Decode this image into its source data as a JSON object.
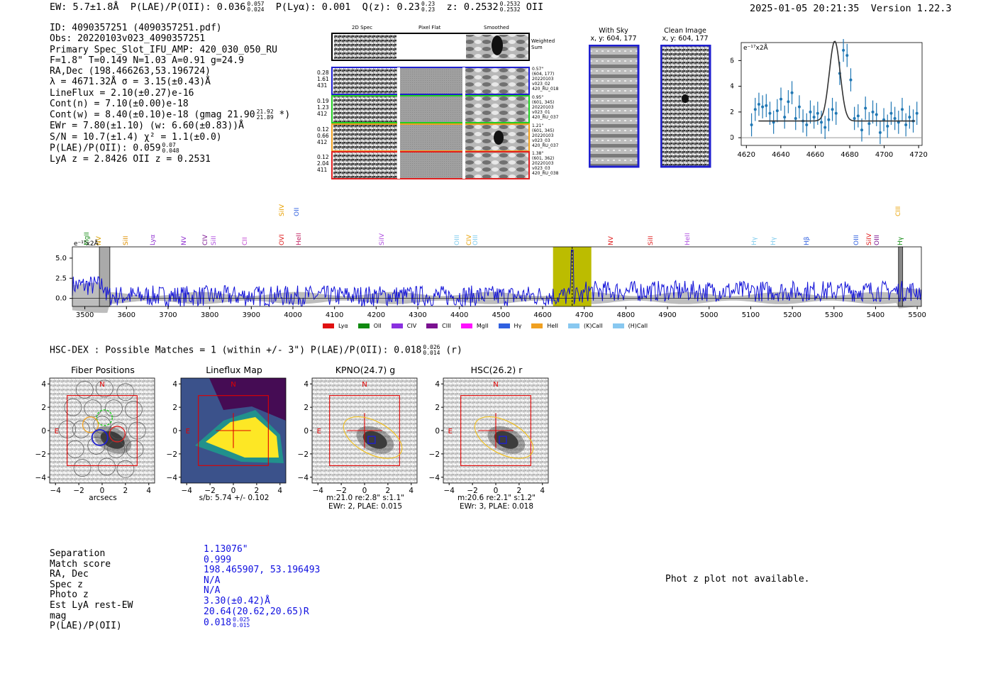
{
  "header": {
    "ew": "EW: 5.7±1.8Å",
    "plae_label": "P(LAE)/P(OII): 0.036",
    "plae_hi": "0.057",
    "plae_lo": "0.024",
    "plya": "P(Lyα): 0.001",
    "q_label": "Q(z): 0.23",
    "q_hi": "0.23",
    "q_lo": "0.23",
    "z_label": "z: 0.2532",
    "z_hi": "0.2532",
    "z_lo": "0.2532",
    "z_line": "OII",
    "timestamp": "2025-01-05 20:21:35",
    "version": "Version 1.22.3"
  },
  "info": {
    "id": "ID: 4090357251 (4090357251.pdf)",
    "obs": "Obs: 20220103v023_4090357251",
    "primary": "Primary Spec_Slot_IFU_AMP: 420_030_050_RU",
    "fiber": "F=1.8\"  T=0.149  N=1.03  A=0.91  g=24.9",
    "radec": "RA,Dec (198.466263,53.196724)",
    "lambda": "λ = 4671.32Å  σ = 3.15(±0.43)Å",
    "lineflux": "LineFlux = 2.10(±0.27)e-16",
    "contn": "Cont(n) = 7.10(±0.00)e-18",
    "contw": "Cont(w) = 8.40(±0.10)e-18 (gmag 21.90",
    "contw_hi": "21.92",
    "contw_lo": "21.89",
    "contw_end": "*)",
    "ewr": "EWr = 7.80(±1.10) (w: 6.60(±0.83))Å",
    "sn": "S/N = 10.7(±1.4)  χ² = 1.1(±0.0)",
    "plae": "P(LAE)/P(OII): 0.059",
    "plae_hi": "0.07",
    "plae_lo": "0.048",
    "lya": "LyA z = 2.8426  OII z = 0.2531"
  },
  "cutouts": {
    "col_2d": "2D Spec",
    "col_flat": "Pixel Flat",
    "col_smooth": "Smoothed",
    "weighted": "Weighted Sum",
    "rows": [
      {
        "v1": "0.28",
        "v2": "1.61",
        "v3": "431",
        "meta1": "0.57\"",
        "meta2": "(604, 177)",
        "meta3": "20220103",
        "meta4": "v023_02",
        "meta5": "420_RU_018",
        "color": "#1f1fd0"
      },
      {
        "v1": "0.19",
        "v2": "1.23",
        "v3": "412",
        "meta1": "0.95\"",
        "meta2": "(601, 345)",
        "meta3": "20220103",
        "meta4": "v023_01",
        "meta5": "420_RU_037",
        "color": "#22cc22"
      },
      {
        "v1": "0.12",
        "v2": "0.66",
        "v3": "412",
        "meta1": "1.21\"",
        "meta2": "(601, 345)",
        "meta3": "20220103",
        "meta4": "v023_03",
        "meta5": "420_RU_037",
        "color": "#f0a020"
      },
      {
        "v1": "0.12",
        "v2": "2.04",
        "v3": "411",
        "meta1": "1.38\"",
        "meta2": "(601, 362)",
        "meta3": "20220103",
        "meta4": "v023_03",
        "meta5": "420_RU_038",
        "color": "#e02020"
      }
    ]
  },
  "sky": {
    "with_sky": "With Sky",
    "with_sky_xy": "x, y: 604, 177",
    "clean": "Clean Image",
    "clean_xy": "x, y: 604, 177"
  },
  "linefit": {
    "unit": "e⁻¹⁷x2Å",
    "yticks": [
      "0",
      "2",
      "4",
      "6"
    ],
    "xticks": [
      "4620",
      "4640",
      "4660",
      "4680",
      "4700",
      "4720"
    ],
    "fit_center": 4671.3,
    "fit_amp": 6.2,
    "fit_sigma": 3.15,
    "fit_cont": 1.3,
    "points": [
      1.0,
      2.2,
      2.6,
      2.4,
      2.5,
      1.9,
      1.2,
      2.1,
      3.0,
      1.6,
      2.8,
      3.5,
      1.5,
      2.4,
      1.3,
      1.0,
      2.0,
      1.6,
      1.9,
      1.2,
      0.8,
      1.4,
      2.2,
      1.9,
      5.0,
      6.8,
      6.4,
      4.5,
      1.5,
      1.7,
      0.6,
      2.3,
      1.1,
      2.0,
      1.8,
      0.4,
      1.4,
      0.9,
      1.9,
      1.5,
      1.2,
      2.2,
      1.0,
      1.6,
      1.3,
      1.9
    ]
  },
  "spectrum": {
    "unit": "e⁻¹⁷x2Å",
    "yticks": [
      "0.0",
      "2.5",
      "5.0"
    ],
    "xticks": [
      "3500",
      "3600",
      "3700",
      "3800",
      "3900",
      "4000",
      "4100",
      "4200",
      "4300",
      "4400",
      "4500",
      "4600",
      "4700",
      "4800",
      "4900",
      "5000",
      "5100",
      "5200",
      "5300",
      "5400",
      "5500"
    ],
    "highlight_center": 4671,
    "lines": [
      {
        "name": "MgII",
        "wave": 3505,
        "color": "#128a12",
        "tier": 1
      },
      {
        "name": "NV",
        "wave": 3535,
        "color": "#d8a000",
        "tier": 1
      },
      {
        "name": "SiII",
        "wave": 3600,
        "color": "#e09000",
        "tier": 1
      },
      {
        "name": "Lyα",
        "wave": 3665,
        "color": "#9030d0",
        "tier": 1
      },
      {
        "name": "NV",
        "wave": 3740,
        "color": "#9030d0",
        "tier": 1
      },
      {
        "name": "CIV",
        "wave": 3790,
        "color": "#7a1090",
        "tier": 1
      },
      {
        "name": "SiII",
        "wave": 3810,
        "color": "#b050e0",
        "tier": 1
      },
      {
        "name": "CII",
        "wave": 3885,
        "color": "#c040d0",
        "tier": 1
      },
      {
        "name": "SiIV",
        "wave": 3975,
        "color": "#e8a000",
        "tier": 0
      },
      {
        "name": "OII",
        "wave": 4010,
        "color": "#3060e0",
        "tier": 0
      },
      {
        "name": "OVI",
        "wave": 3975,
        "color": "#e02020",
        "tier": 1
      },
      {
        "name": "HeII",
        "wave": 4015,
        "color": "#c02060",
        "tier": 1
      },
      {
        "name": "SiIV",
        "wave": 4215,
        "color": "#b050e0",
        "tier": 1
      },
      {
        "name": "OIII",
        "wave": 4395,
        "color": "#80ccee",
        "tier": 1
      },
      {
        "name": "CIV",
        "wave": 4425,
        "color": "#e8a000",
        "tier": 1
      },
      {
        "name": "OIII",
        "wave": 4440,
        "color": "#80ccee",
        "tier": 1
      },
      {
        "name": "NV",
        "wave": 4765,
        "color": "#e02020",
        "tier": 1
      },
      {
        "name": "SiII",
        "wave": 4860,
        "color": "#e02020",
        "tier": 1
      },
      {
        "name": "HeII",
        "wave": 4950,
        "color": "#b050e0",
        "tier": 1
      },
      {
        "name": "Hγ",
        "wave": 5110,
        "color": "#80ccee",
        "tier": 1
      },
      {
        "name": "Hγ",
        "wave": 5155,
        "color": "#80ccee",
        "tier": 1
      },
      {
        "name": "Hβ",
        "wave": 5235,
        "color": "#3060e0",
        "tier": 1
      },
      {
        "name": "OIII",
        "wave": 5355,
        "color": "#3060e0",
        "tier": 1
      },
      {
        "name": "SiIV",
        "wave": 5385,
        "color": "#e02020",
        "tier": 1
      },
      {
        "name": "OIII",
        "wave": 5405,
        "color": "#7a1090",
        "tier": 1
      },
      {
        "name": "CIII",
        "wave": 5455,
        "color": "#e8a000",
        "tier": 0
      },
      {
        "name": "Hγ",
        "wave": 5460,
        "color": "#128a12",
        "tier": 1
      }
    ],
    "legend": [
      {
        "label": "Lyα",
        "color": "#e01010"
      },
      {
        "label": "OII",
        "color": "#108a10"
      },
      {
        "label": "CIV",
        "color": "#8a30e0"
      },
      {
        "label": "CIII",
        "color": "#7a1090"
      },
      {
        "label": "MgII",
        "color": "#ff10ff"
      },
      {
        "label": "Hγ",
        "color": "#3060e0"
      },
      {
        "label": "HeII",
        "color": "#f0a020"
      },
      {
        "label": "(K)CaII",
        "color": "#88c8f0"
      },
      {
        "label": "(H)CaII",
        "color": "#88c8f0"
      }
    ]
  },
  "hsc": {
    "line": "HSC-DEX : Possible Matches = 1 (within +/- 3\")  P(LAE)/P(OII): 0.018",
    "hi": "0.026",
    "lo": "0.014",
    "band": "(r)"
  },
  "images": [
    {
      "title": "Fiber Positions",
      "caption1": "arcsecs",
      "caption2": ""
    },
    {
      "title": "Lineflux Map",
      "caption1": "s/b: 5.74 +/- 0.102",
      "caption2": ""
    },
    {
      "title": "KPNO(24.7) g",
      "caption1": "m:21.0  re:2.8\"  s:1.1\"",
      "caption2": "EWr: 2, PLAE: 0.015"
    },
    {
      "title": "HSC(26.2) r",
      "caption1": "m:20.6  re:2.1\"  s:1.2\"",
      "caption2": "EWr: 3, PLAE: 0.018"
    }
  ],
  "image_ticks": {
    "x": [
      "−4",
      "−2",
      "0",
      "2",
      "4"
    ],
    "y": [
      "4",
      "2",
      "0",
      "−2",
      "−4"
    ],
    "north": "N",
    "east": "E"
  },
  "match": {
    "labels": [
      "Separation",
      "Match score",
      "RA, Dec",
      "Spec z",
      "Photo z",
      "Est LyA rest-EW",
      "mag",
      "P(LAE)/P(OII)"
    ],
    "values": [
      "1.13076\"",
      "0.999",
      "198.465907, 53.196493",
      "N/A",
      "N/A",
      "3.30(±0.42)Å",
      "20.64(20.62,20.65)R",
      "0.018"
    ],
    "plae_hi": "0.025",
    "plae_lo": "0.015"
  },
  "photz": "Phot z plot not available."
}
